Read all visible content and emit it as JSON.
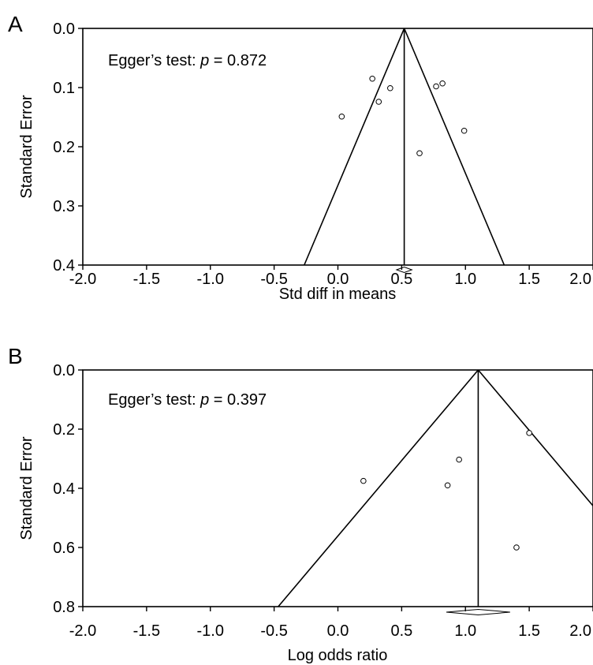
{
  "chart_data": [
    {
      "panel_label": "A",
      "type": "scatter",
      "subtype": "funnel-plot",
      "xlabel": "Std diff in means",
      "ylabel": "Standard Error",
      "xlim": [
        -2.0,
        2.0
      ],
      "ylim": [
        0.0,
        0.4
      ],
      "y_inverted": true,
      "x_ticks": [
        "-2.0",
        "-1.5",
        "-1.0",
        "-0.5",
        "0.0",
        "0.5",
        "1.0",
        "1.5",
        "2.0"
      ],
      "y_ticks": [
        "0.0",
        "0.1",
        "0.2",
        "0.3",
        "0.4"
      ],
      "annotation": {
        "prefix": "Egger’s test: ",
        "italic": "p",
        "suffix": " = 0.872"
      },
      "pooled_estimate": 0.52,
      "pooled_ci": [
        0.46,
        0.58
      ],
      "funnel_half_width_per_se": 1.96,
      "points": [
        {
          "x": 0.27,
          "y": 0.085
        },
        {
          "x": 0.41,
          "y": 0.101
        },
        {
          "x": 0.32,
          "y": 0.124
        },
        {
          "x": 0.03,
          "y": 0.149
        },
        {
          "x": 0.77,
          "y": 0.098
        },
        {
          "x": 0.82,
          "y": 0.093
        },
        {
          "x": 0.99,
          "y": 0.173
        },
        {
          "x": 0.64,
          "y": 0.211
        }
      ]
    },
    {
      "panel_label": "B",
      "type": "scatter",
      "subtype": "funnel-plot",
      "xlabel": "Log odds ratio",
      "ylabel": "Standard Error",
      "xlim": [
        -2.0,
        2.0
      ],
      "ylim": [
        0.0,
        0.8
      ],
      "y_inverted": true,
      "x_ticks": [
        "-2.0",
        "-1.5",
        "-1.0",
        "-0.5",
        "0.0",
        "0.5",
        "1.0",
        "1.5",
        "2.0"
      ],
      "y_ticks": [
        "0.0",
        "0.2",
        "0.4",
        "0.6",
        "0.8"
      ],
      "annotation": {
        "prefix": "Egger’s test: ",
        "italic": "p",
        "suffix": " = 0.397"
      },
      "pooled_estimate": 1.1,
      "pooled_ci": [
        0.85,
        1.35
      ],
      "funnel_half_width_per_se": 1.96,
      "points": [
        {
          "x": 0.2,
          "y": 0.375
        },
        {
          "x": 0.95,
          "y": 0.303
        },
        {
          "x": 0.86,
          "y": 0.39
        },
        {
          "x": 1.5,
          "y": 0.213
        },
        {
          "x": 1.4,
          "y": 0.6
        }
      ]
    }
  ]
}
